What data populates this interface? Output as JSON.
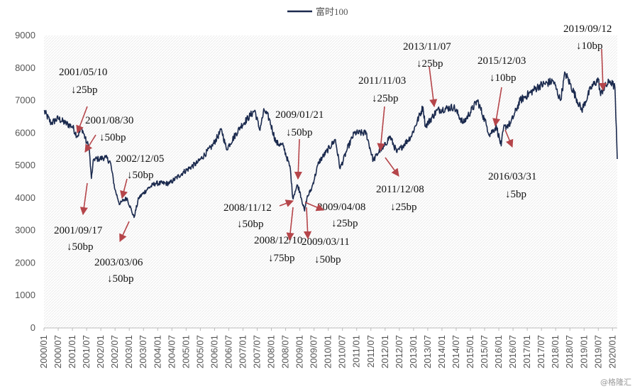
{
  "chart_data": {
    "type": "line",
    "title": "",
    "xlabel": "",
    "ylabel": "",
    "ylim": [
      0,
      9000
    ],
    "y_ticks": [
      0,
      1000,
      2000,
      3000,
      4000,
      5000,
      6000,
      7000,
      8000,
      9000
    ],
    "x_range": [
      "2000-01",
      "2020-03"
    ],
    "x_tick_labels": [
      "2000/01",
      "2000/07",
      "2001/01",
      "2001/07",
      "2002/01",
      "2002/07",
      "2003/01",
      "2003/07",
      "2004/01",
      "2004/07",
      "2005/01",
      "2005/07",
      "2006/01",
      "2006/07",
      "2007/01",
      "2007/07",
      "2008/01",
      "2008/07",
      "2009/01",
      "2009/07",
      "2010/01",
      "2010/07",
      "2011/01",
      "2011/07",
      "2012/01",
      "2012/07",
      "2013/01",
      "2013/07",
      "2014/01",
      "2014/07",
      "2015/01",
      "2015/07",
      "2016/01",
      "2016/07",
      "2017/01",
      "2017/07",
      "2018/01",
      "2018/07",
      "2019/01",
      "2019/07",
      "2020/01"
    ],
    "grid": "none",
    "background": "light-hatched",
    "legend_position": "top-center",
    "series": [
      {
        "name": "富时100",
        "color": "#1b2a4e",
        "points": [
          [
            "2000-01",
            6680
          ],
          [
            "2000-04",
            6300
          ],
          [
            "2000-07",
            6450
          ],
          [
            "2000-10",
            6300
          ],
          [
            "2001-01",
            6200
          ],
          [
            "2001-03",
            5900
          ],
          [
            "2001-05",
            6150
          ],
          [
            "2001-07",
            5700
          ],
          [
            "2001-08",
            5600
          ],
          [
            "2001-09",
            4600
          ],
          [
            "2001-10",
            5200
          ],
          [
            "2001-12",
            5200
          ],
          [
            "2002-03",
            5250
          ],
          [
            "2002-05",
            5100
          ],
          [
            "2002-07",
            4250
          ],
          [
            "2002-09",
            3800
          ],
          [
            "2002-10",
            3900
          ],
          [
            "2002-12",
            4000
          ],
          [
            "2003-02",
            3600
          ],
          [
            "2003-03",
            3400
          ],
          [
            "2003-05",
            4000
          ],
          [
            "2003-09",
            4300
          ],
          [
            "2003-12",
            4450
          ],
          [
            "2004-06",
            4450
          ],
          [
            "2004-12",
            4800
          ],
          [
            "2005-06",
            5100
          ],
          [
            "2005-12",
            5600
          ],
          [
            "2006-04",
            6100
          ],
          [
            "2006-06",
            5500
          ],
          [
            "2006-12",
            6200
          ],
          [
            "2007-06",
            6700
          ],
          [
            "2007-08",
            6100
          ],
          [
            "2007-10",
            6700
          ],
          [
            "2007-12",
            6450
          ],
          [
            "2008-03",
            5700
          ],
          [
            "2008-06",
            5600
          ],
          [
            "2008-09",
            4900
          ],
          [
            "2008-10",
            4000
          ],
          [
            "2008-11",
            4200
          ],
          [
            "2008-12",
            4400
          ],
          [
            "2009-01",
            4200
          ],
          [
            "2009-03",
            3600
          ],
          [
            "2009-04",
            4000
          ],
          [
            "2009-06",
            4300
          ],
          [
            "2009-09",
            5100
          ],
          [
            "2009-12",
            5400
          ],
          [
            "2010-04",
            5800
          ],
          [
            "2010-06",
            4900
          ],
          [
            "2010-09",
            5500
          ],
          [
            "2010-12",
            6000
          ],
          [
            "2011-05",
            6000
          ],
          [
            "2011-08",
            5150
          ],
          [
            "2011-11",
            5500
          ],
          [
            "2011-12",
            5500
          ],
          [
            "2012-03",
            5900
          ],
          [
            "2012-06",
            5400
          ],
          [
            "2012-12",
            5900
          ],
          [
            "2013-05",
            6800
          ],
          [
            "2013-06",
            6200
          ],
          [
            "2013-11",
            6700
          ],
          [
            "2014-06",
            6800
          ],
          [
            "2014-10",
            6300
          ],
          [
            "2015-04",
            7000
          ],
          [
            "2015-08",
            6200
          ],
          [
            "2015-09",
            5950
          ],
          [
            "2015-12",
            6200
          ],
          [
            "2016-02",
            5600
          ],
          [
            "2016-03",
            6150
          ],
          [
            "2016-06",
            6300
          ],
          [
            "2016-10",
            7000
          ],
          [
            "2017-06",
            7450
          ],
          [
            "2017-12",
            7600
          ],
          [
            "2018-03",
            7000
          ],
          [
            "2018-05",
            7850
          ],
          [
            "2018-12",
            6700
          ],
          [
            "2019-04",
            7400
          ],
          [
            "2019-07",
            7650
          ],
          [
            "2019-08",
            7150
          ],
          [
            "2019-09",
            7350
          ],
          [
            "2019-12",
            7600
          ],
          [
            "2020-01",
            7500
          ],
          [
            "2020-02",
            7400
          ],
          [
            "2020-03",
            5200
          ]
        ]
      }
    ],
    "annotations": [
      {
        "date_text": "2001/05/10",
        "cut_text": "↓25bp"
      },
      {
        "date_text": "2001/08/30",
        "cut_text": "↓50bp"
      },
      {
        "date_text": "2001/09/17",
        "cut_text": "↓50bp"
      },
      {
        "date_text": "2002/12/05",
        "cut_text": "↓50bp"
      },
      {
        "date_text": "2003/03/06",
        "cut_text": "↓50bp"
      },
      {
        "date_text": "2008/11/12",
        "cut_text": "↓50bp"
      },
      {
        "date_text": "2008/12/10",
        "cut_text": "↓75bp"
      },
      {
        "date_text": "2009/01/21",
        "cut_text": "↓50bp"
      },
      {
        "date_text": "2009/03/11",
        "cut_text": "↓50bp"
      },
      {
        "date_text": "2009/04/08",
        "cut_text": "↓25bp"
      },
      {
        "date_text": "2011/11/03",
        "cut_text": "↓25bp"
      },
      {
        "date_text": "2011/12/08",
        "cut_text": "↓25bp"
      },
      {
        "date_text": "2013/11/07",
        "cut_text": "↓25bp"
      },
      {
        "date_text": "2015/12/03",
        "cut_text": "↓10bp"
      },
      {
        "date_text": "2016/03/31",
        "cut_text": "↓5bp"
      },
      {
        "date_text": "2019/09/12",
        "cut_text": "↓10bp"
      }
    ],
    "annotation_color": "#b5454a"
  },
  "watermark": "@格隆汇"
}
